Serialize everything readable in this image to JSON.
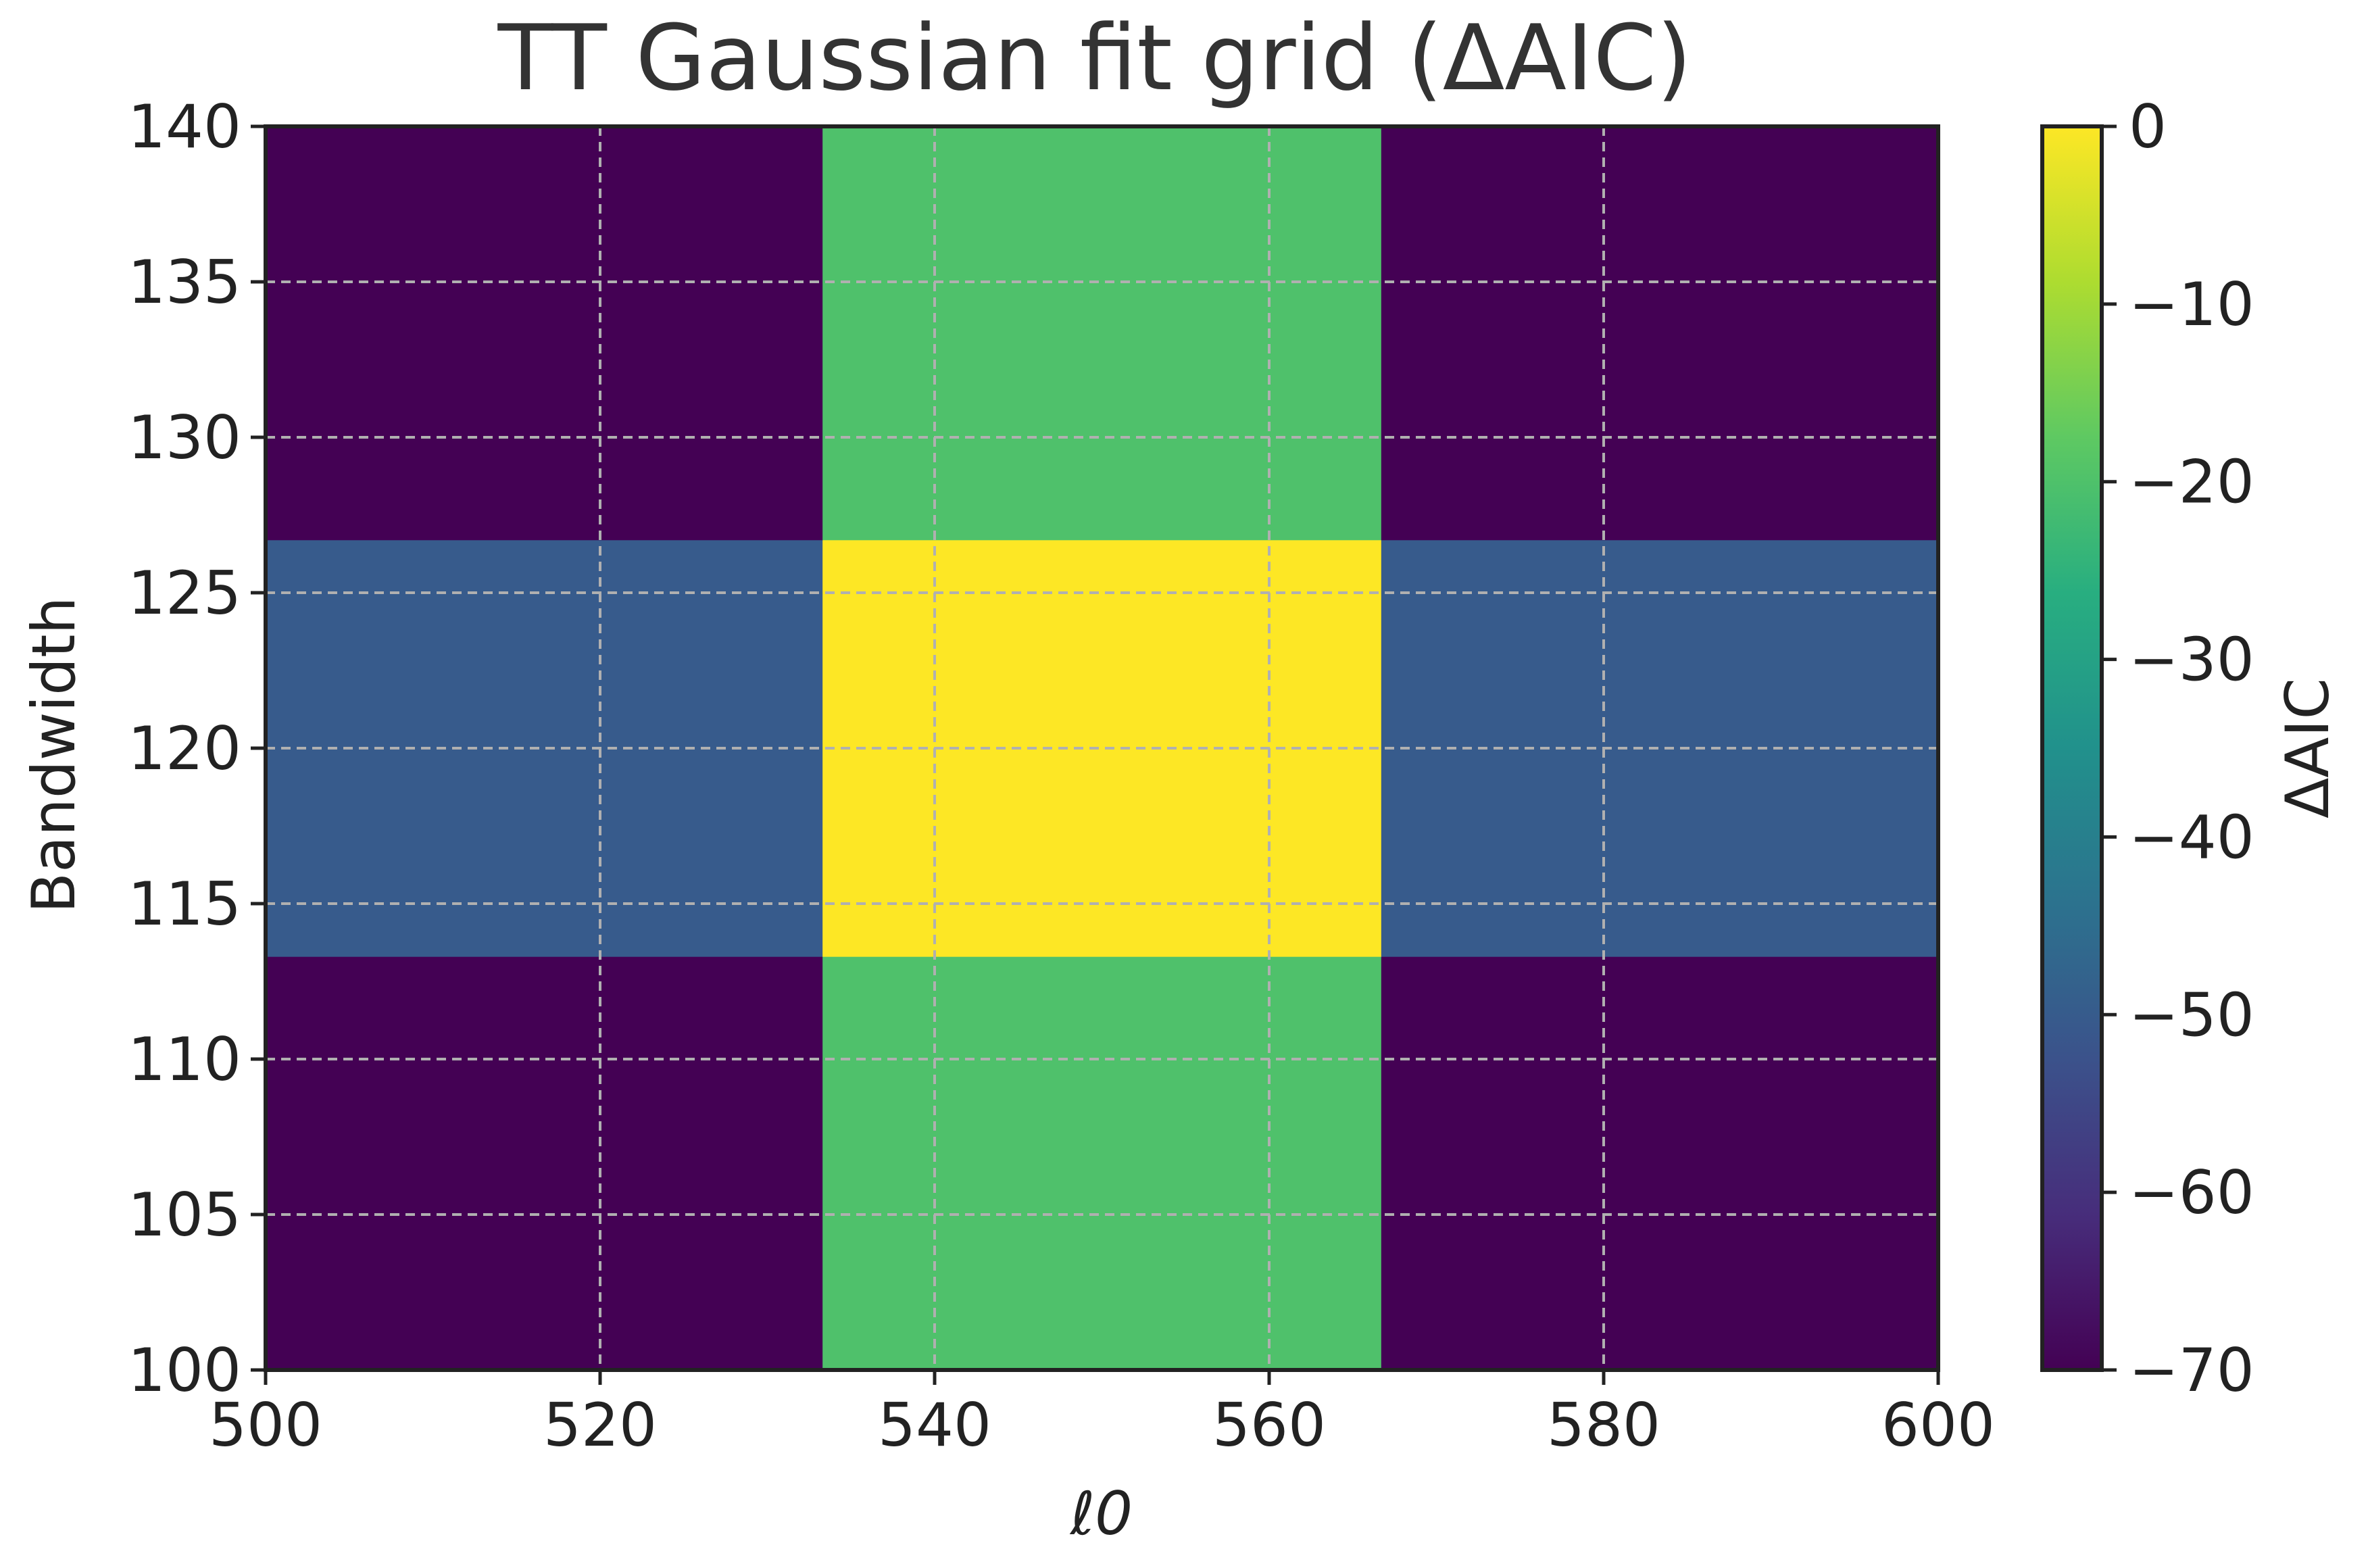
{
  "chart_data": {
    "type": "heatmap",
    "title": "TT Gaussian fit grid (ΔAIC)",
    "xlabel": "ℓ0",
    "ylabel": "Bandwidth",
    "xlim": [
      500,
      600
    ],
    "ylim": [
      100,
      140
    ],
    "x_ticks": [
      500,
      520,
      540,
      560,
      580,
      600
    ],
    "y_ticks": [
      100,
      105,
      110,
      115,
      120,
      125,
      130,
      135,
      140
    ],
    "x_bin_edges": [
      500,
      533.3,
      566.7,
      600
    ],
    "y_bin_edges": [
      100,
      113.3,
      126.7,
      140
    ],
    "z": [
      [
        -70,
        -20,
        -70
      ],
      [
        -50,
        0,
        -50
      ],
      [
        -70,
        -20,
        -70
      ]
    ],
    "grid": true,
    "colormap": "viridis",
    "colorbar": {
      "label": "ΔAIC",
      "range": [
        -70,
        0
      ],
      "ticks": [
        0,
        -10,
        -20,
        -30,
        -40,
        -50,
        -60,
        -70
      ],
      "tick_labels": [
        "0",
        "−10",
        "−20",
        "−30",
        "−40",
        "−50",
        "−60",
        "−70"
      ]
    }
  }
}
